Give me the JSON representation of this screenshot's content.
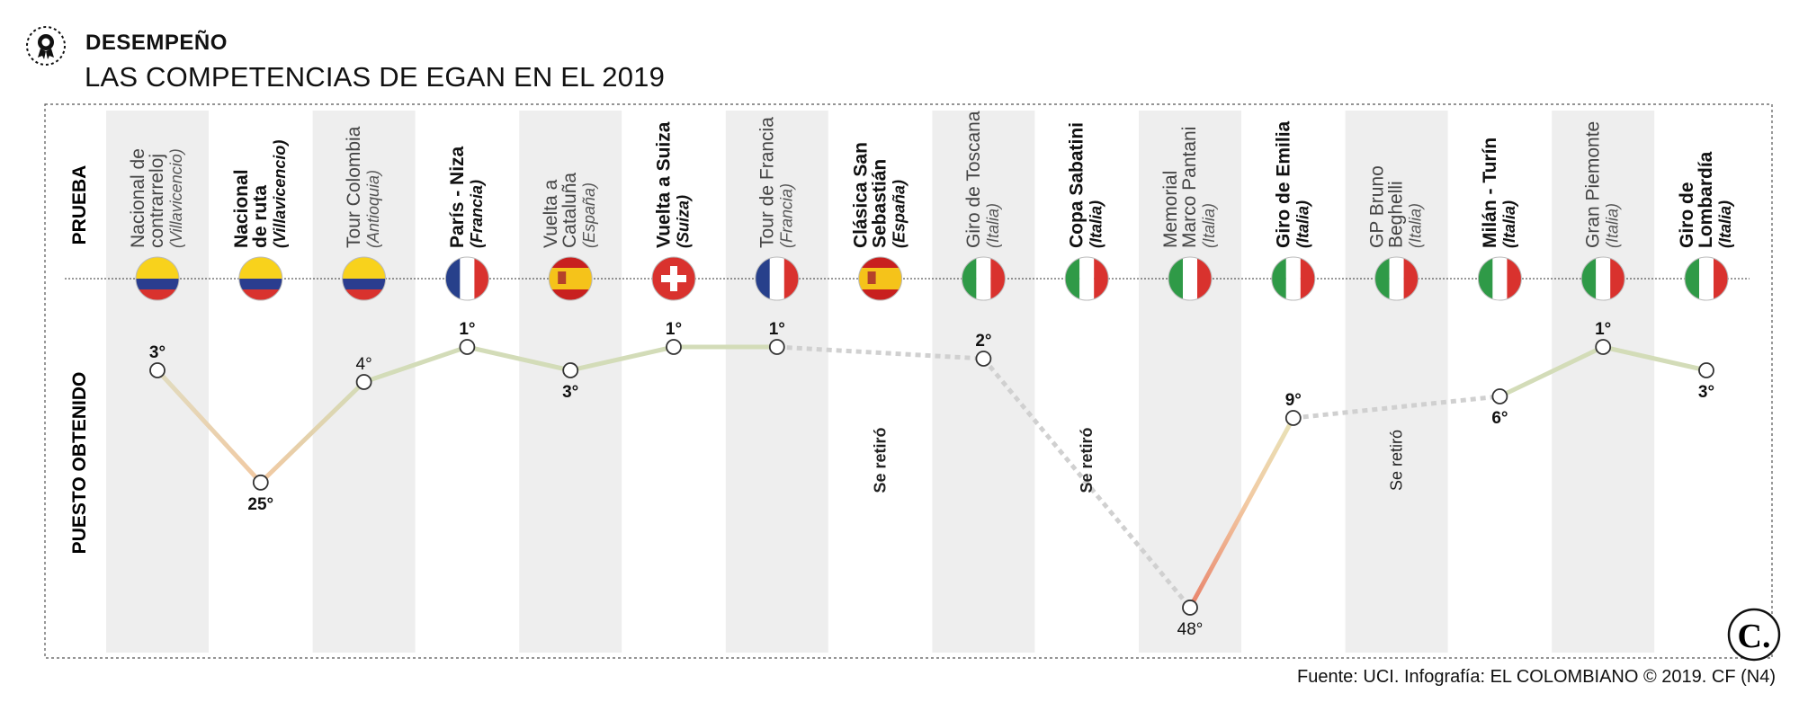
{
  "header": {
    "kicker": "DESEMPEÑO",
    "title": "LAS COMPETENCIAS DE EGAN EN EL 2019",
    "source": "Fuente: UCI. Infografía: EL COLOMBIANO © 2019. CF (N4)",
    "logo_text": "C.",
    "icon": "ribbon-medal-icon"
  },
  "row_labels": {
    "prueba": "PRUEBA",
    "puesto": "PUESTO OBTENIDO"
  },
  "colors": {
    "good_line": "#d3dcb8",
    "mid_line": "#f0d4ae",
    "bad_line": "#e8826a",
    "dashed": "#d0d0d0",
    "stripe": "#eeeeee",
    "frame": "#555555"
  },
  "chart_data": {
    "type": "line",
    "y_axis": "Puesto obtenido",
    "y_reversed": true,
    "y_scale": "nonlinear",
    "races": [
      {
        "line1": "Nacional de",
        "line2": "contrarreloj",
        "loc": "(Villavicencio)",
        "bold": false,
        "flag": "colombia",
        "place": 3,
        "label": "3°",
        "status": ""
      },
      {
        "line1": "Nacional",
        "line2": "de ruta",
        "loc": "(Villavicencio)",
        "bold": true,
        "flag": "colombia",
        "place": 25,
        "label": "25°",
        "status": ""
      },
      {
        "line1": "Tour Colombia",
        "line2": "",
        "loc": "(Antioquia)",
        "bold": false,
        "flag": "colombia",
        "place": 4,
        "label": "4°",
        "status": ""
      },
      {
        "line1": "París - Niza",
        "line2": "",
        "loc": "(Francia)",
        "bold": true,
        "flag": "france",
        "place": 1,
        "label": "1°",
        "status": ""
      },
      {
        "line1": "Vuelta a",
        "line2": "Cataluña",
        "loc": "(España)",
        "bold": false,
        "flag": "spain",
        "place": 3,
        "label": "3°",
        "status": ""
      },
      {
        "line1": "Vuelta a Suiza",
        "line2": "",
        "loc": "(Suiza)",
        "bold": true,
        "flag": "switzerland",
        "place": 1,
        "label": "1°",
        "status": ""
      },
      {
        "line1": "Tour de Francia",
        "line2": "",
        "loc": "(Francia)",
        "bold": false,
        "flag": "france",
        "place": 1,
        "label": "1°",
        "status": ""
      },
      {
        "line1": "Clásica San",
        "line2": "Sebastián",
        "loc": "(España)",
        "bold": true,
        "flag": "spain",
        "place": null,
        "label": "",
        "status": "Se retiró"
      },
      {
        "line1": "Giro de Toscana",
        "line2": "",
        "loc": "(Italia)",
        "bold": false,
        "flag": "italy",
        "place": 2,
        "label": "2°",
        "status": ""
      },
      {
        "line1": "Copa Sabatini",
        "line2": "",
        "loc": "(Italia)",
        "bold": true,
        "flag": "italy",
        "place": null,
        "label": "",
        "status": "Se retiró"
      },
      {
        "line1": "Memorial",
        "line2": "Marco Pantani",
        "loc": "(Italia)",
        "bold": false,
        "flag": "italy",
        "place": 48,
        "label": "48°",
        "status": ""
      },
      {
        "line1": "Giro de Emilia",
        "line2": "",
        "loc": "(Italia)",
        "bold": true,
        "flag": "italy",
        "place": 9,
        "label": "9°",
        "status": ""
      },
      {
        "line1": "GP Bruno",
        "line2": "Beghelli",
        "loc": "(Italia)",
        "bold": false,
        "flag": "italy",
        "place": null,
        "label": "",
        "status": "Se retiró"
      },
      {
        "line1": "Milán - Turín",
        "line2": "",
        "loc": "(Italia)",
        "bold": true,
        "flag": "italy",
        "place": 6,
        "label": "6°",
        "status": ""
      },
      {
        "line1": "Gran Piemonte",
        "line2": "",
        "loc": "(Italia)",
        "bold": false,
        "flag": "italy",
        "place": 1,
        "label": "1°",
        "status": ""
      },
      {
        "line1": "Giro de",
        "line2": "Lombardía",
        "loc": "(Italia)",
        "bold": true,
        "flag": "italy",
        "place": 3,
        "label": "3°",
        "status": ""
      }
    ]
  }
}
